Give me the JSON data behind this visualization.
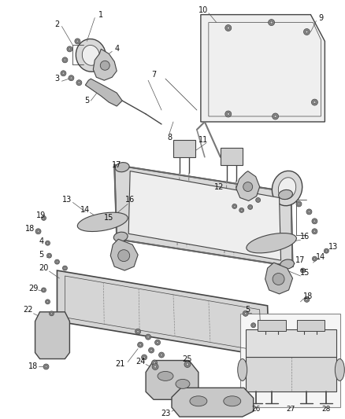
{
  "bg_color": "#ffffff",
  "line_color": "#444444",
  "label_color": "#111111",
  "fig_width": 4.39,
  "fig_height": 5.33,
  "dpi": 100,
  "fs": 7.0
}
